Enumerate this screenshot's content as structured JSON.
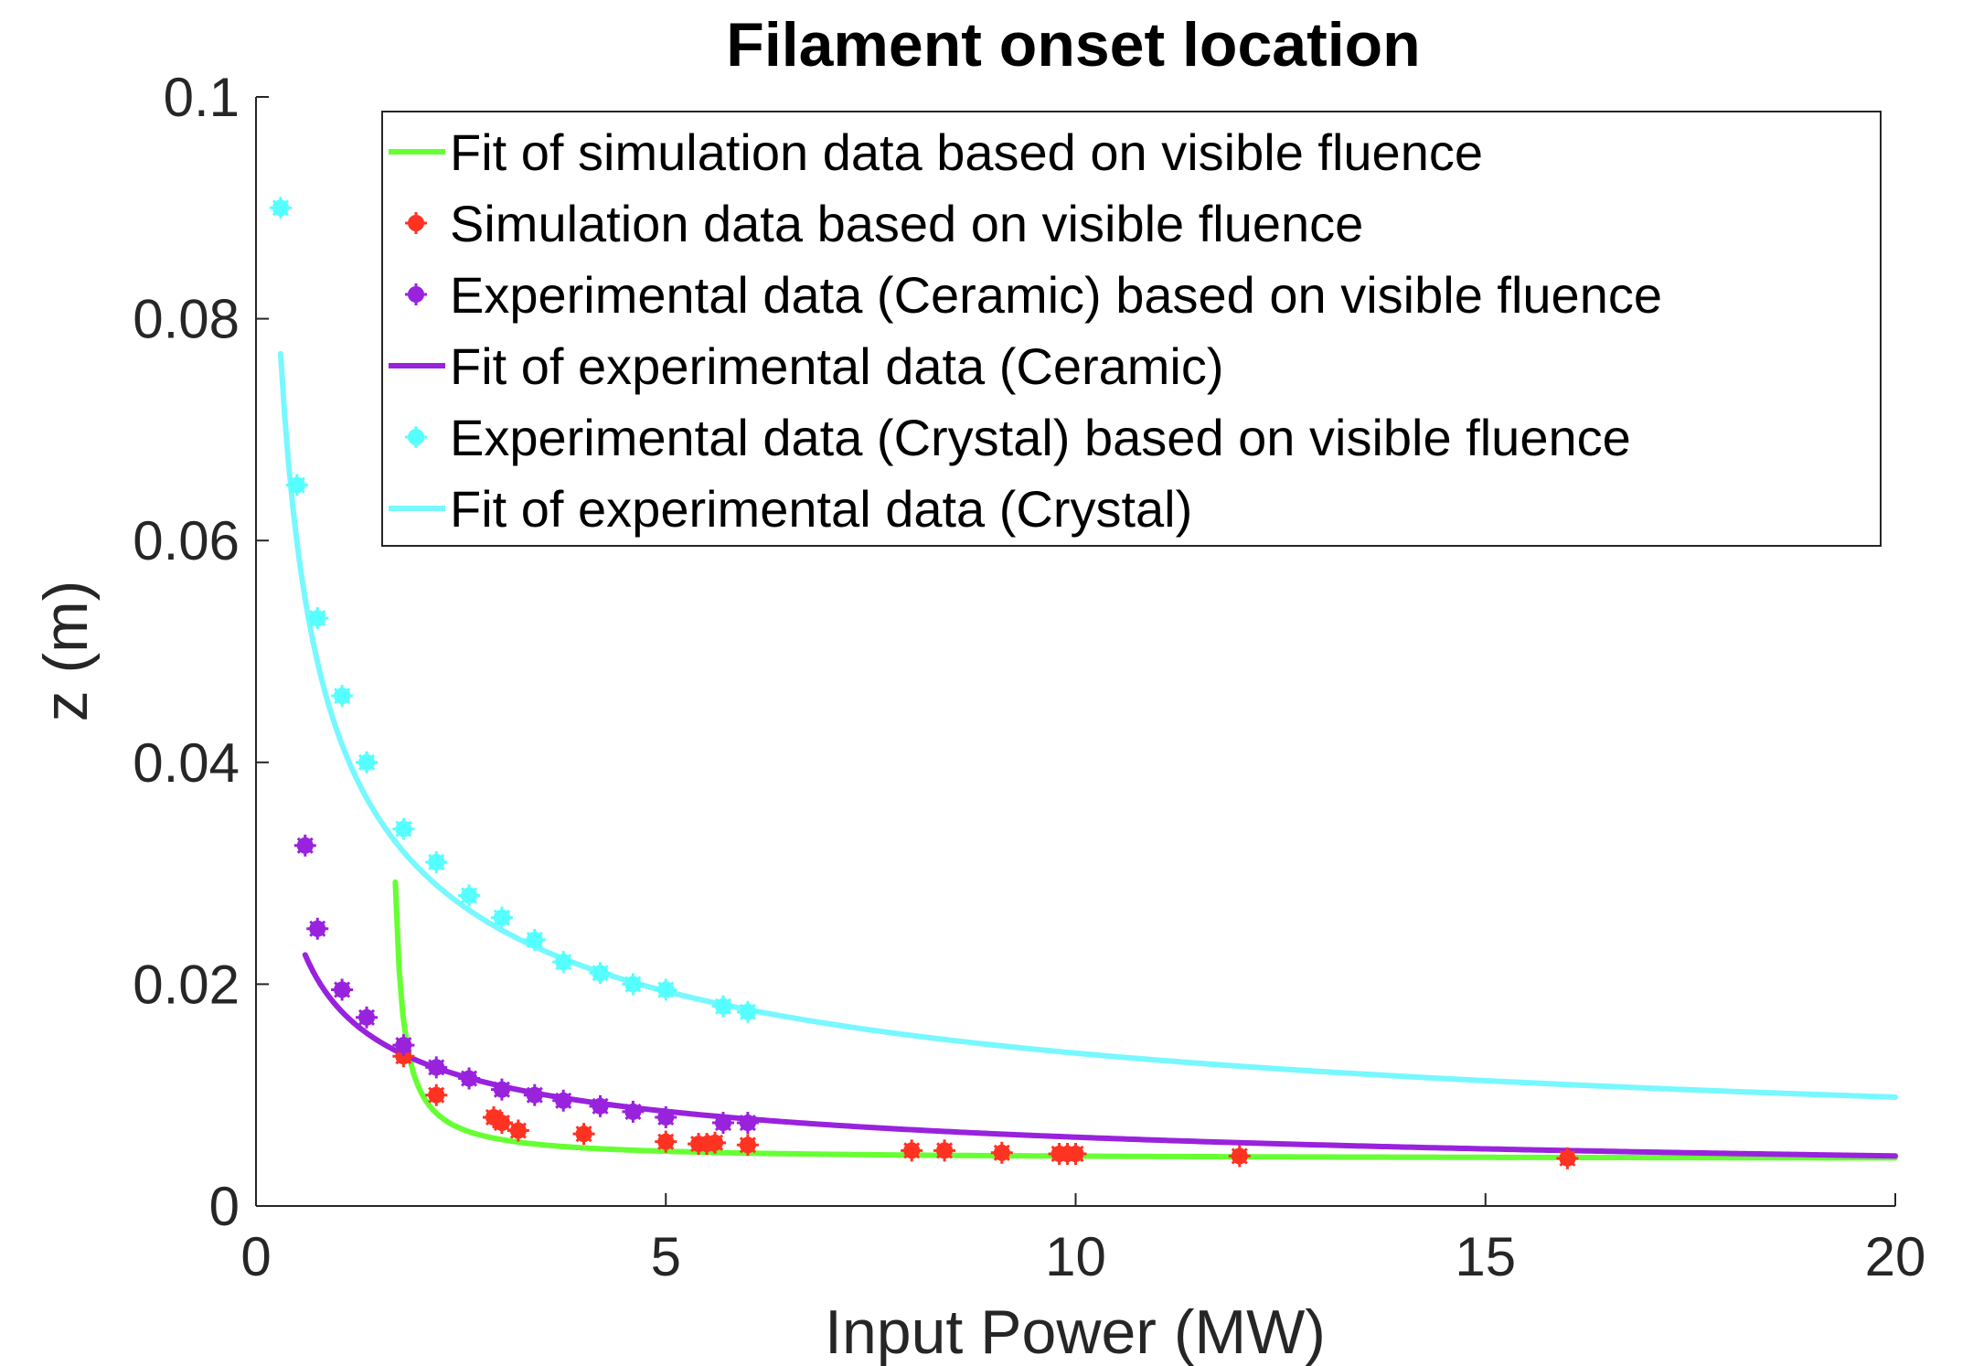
{
  "chart_data": {
    "type": "line",
    "title": "Filament onset location",
    "xlabel": "Input Power (MW)",
    "ylabel": "z (m)",
    "xlim": [
      0,
      20
    ],
    "ylim": [
      0,
      0.1
    ],
    "xticks": [
      0,
      5,
      10,
      15,
      20
    ],
    "xtick_labels": [
      "0",
      "5",
      "10",
      "15",
      "20"
    ],
    "yticks": [
      0,
      0.02,
      0.04,
      0.06,
      0.08,
      0.1
    ],
    "ytick_labels": [
      "0",
      "0.02",
      "0.04",
      "0.06",
      "0.08",
      "0.1"
    ],
    "grid": false,
    "legend_position": "top-right",
    "series": [
      {
        "name": "Fit of simulation data based on visible fluence",
        "kind": "line",
        "color": "#66ff33",
        "fit": {
          "model": "a + b/(x - c)",
          "a": 0.0042,
          "b": 0.0025,
          "c": 1.6
        },
        "x_range": [
          1.7,
          20
        ]
      },
      {
        "name": "Simulation data based on visible fluence",
        "kind": "marker",
        "color": "#ff3322",
        "x": [
          1.8,
          2.2,
          2.9,
          3.0,
          3.2,
          4.0,
          5.0,
          5.4,
          5.5,
          5.6,
          6.0,
          8.0,
          8.4,
          9.1,
          9.8,
          9.9,
          10.0,
          12.0,
          16.0
        ],
        "y": [
          0.0135,
          0.01,
          0.008,
          0.0075,
          0.0068,
          0.0065,
          0.0058,
          0.0056,
          0.0056,
          0.0057,
          0.0055,
          0.005,
          0.005,
          0.0048,
          0.0047,
          0.0047,
          0.0047,
          0.0045,
          0.0043
        ]
      },
      {
        "name": "Experimental data (Ceramic) based on visible fluence",
        "kind": "marker",
        "color": "#9922dd",
        "x": [
          0.6,
          0.75,
          1.05,
          1.35,
          1.8,
          2.2,
          2.6,
          3.0,
          3.4,
          3.75,
          4.2,
          4.6,
          5.0,
          5.7,
          6.0
        ],
        "y": [
          0.0325,
          0.025,
          0.0195,
          0.017,
          0.0145,
          0.0125,
          0.0115,
          0.0105,
          0.01,
          0.0095,
          0.009,
          0.0085,
          0.008,
          0.0075,
          0.0075
        ]
      },
      {
        "name": "Fit of experimental data (Ceramic)",
        "kind": "line",
        "color": "#9922dd",
        "fit": {
          "model": "a * x^b",
          "a": 0.0179,
          "b": -0.46
        },
        "x_range": [
          0.6,
          20
        ]
      },
      {
        "name": "Experimental data (Crystal) based on visible fluence",
        "kind": "marker",
        "color": "#55ffff",
        "x": [
          0.3,
          0.5,
          0.75,
          1.05,
          1.35,
          1.8,
          2.2,
          2.6,
          3.0,
          3.4,
          3.75,
          4.2,
          4.6,
          5.0,
          5.7,
          6.0
        ],
        "y": [
          0.09,
          0.065,
          0.053,
          0.046,
          0.04,
          0.034,
          0.031,
          0.028,
          0.026,
          0.024,
          0.022,
          0.021,
          0.02,
          0.0195,
          0.018,
          0.0175
        ],
        "tick_color": "#ff66ff"
      },
      {
        "name": "Fit of experimental data (Crystal)",
        "kind": "line",
        "color": "#77f8ff",
        "fit": {
          "model": "a * x^b",
          "a": 0.0426,
          "b": -0.49
        },
        "x_range": [
          0.3,
          20
        ]
      }
    ]
  }
}
